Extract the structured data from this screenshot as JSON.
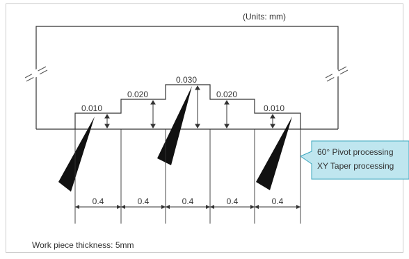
{
  "units_label": "(Units: mm)",
  "step_heights": [
    "0.010",
    "0.020",
    "0.030",
    "0.020",
    "0.010"
  ],
  "pitch_labels": [
    "0.4",
    "0.4",
    "0.4",
    "0.4",
    "0.4"
  ],
  "callout": {
    "line1": "60° Pivot processing",
    "line2": "XY Taper processing"
  },
  "thickness_note": "Work piece thickness: 5mm",
  "colors": {
    "line": "#333333",
    "callout_fill": "#bfe6ef",
    "callout_stroke": "#3aa5be",
    "frame_border": "#cccccc",
    "tool": "#111111"
  }
}
